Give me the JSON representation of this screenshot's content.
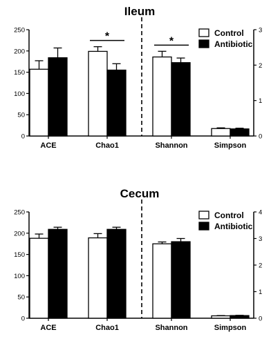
{
  "chart_data": [
    {
      "type": "bar",
      "title": "Ileum",
      "categories": [
        "ACE",
        "Chao1",
        "Shannon",
        "Simpson"
      ],
      "series": [
        {
          "name": "Control",
          "values": [
            157,
            199,
            2.23,
            0.21
          ],
          "errors": [
            20,
            11,
            0.16,
            0.02
          ]
        },
        {
          "name": "Antibiotic",
          "values": [
            184,
            155,
            2.07,
            0.2
          ],
          "errors": [
            23,
            15,
            0.13,
            0.02
          ]
        }
      ],
      "left_axis": {
        "ylim": [
          0,
          250
        ],
        "ticks": [
          "0",
          "50",
          "100",
          "150",
          "200",
          "250"
        ],
        "applies_to": [
          "ACE",
          "Chao1"
        ]
      },
      "right_axis": {
        "ylim": [
          0,
          3
        ],
        "ticks": [
          "0",
          "1",
          "2",
          "3"
        ],
        "applies_to": [
          "Shannon",
          "Simpson"
        ]
      },
      "significance": [
        {
          "category": "Chao1",
          "label": "*"
        },
        {
          "category": "Shannon",
          "label": "*"
        }
      ],
      "legend_position": "top-right"
    },
    {
      "type": "bar",
      "title": "Cecum",
      "categories": [
        "ACE",
        "Chao1",
        "Shannon",
        "Simpson"
      ],
      "series": [
        {
          "name": "Control",
          "values": [
            188,
            189,
            2.8,
            0.09
          ],
          "errors": [
            10,
            10,
            0.07,
            0.01
          ]
        },
        {
          "name": "Antibiotic",
          "values": [
            209,
            209,
            2.88,
            0.1
          ],
          "errors": [
            5,
            5,
            0.12,
            0.01
          ]
        }
      ],
      "left_axis": {
        "ylim": [
          0,
          250
        ],
        "ticks": [
          "0",
          "50",
          "100",
          "150",
          "200",
          "250"
        ],
        "applies_to": [
          "ACE",
          "Chao1"
        ]
      },
      "right_axis": {
        "ylim": [
          0,
          4
        ],
        "ticks": [
          "0",
          "1",
          "2",
          "3",
          "4"
        ],
        "applies_to": [
          "Shannon",
          "Simpson"
        ]
      },
      "significance": [],
      "legend_position": "top-right"
    }
  ],
  "colors": {
    "control_fill": "#ffffff",
    "antibiotic_fill": "#000000",
    "stroke": "#000000"
  }
}
